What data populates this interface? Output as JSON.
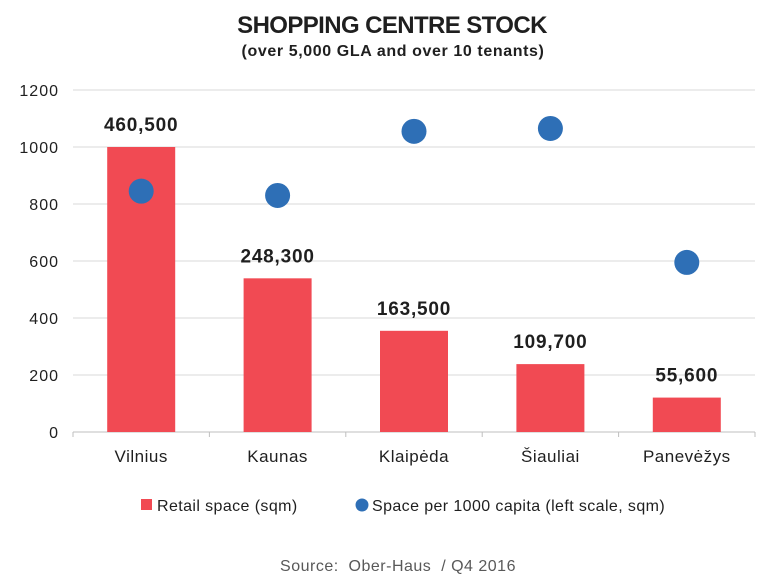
{
  "chart_data": {
    "type": "bar",
    "title": "SHOPPING CENTRE STOCK",
    "subtitle": "(over 5,000 GLA and over 10 tenants)",
    "categories": [
      "Vilnius",
      "Kaunas",
      "Klaipėda",
      "Šiauliai",
      "Panevėžys"
    ],
    "series": [
      {
        "name": "Retail space (sqm)",
        "type": "bar",
        "color": "#f14a53",
        "values": [
          460500,
          248300,
          163500,
          109700,
          55600
        ],
        "data_labels": [
          "460,500",
          "248,300",
          "163,500",
          "109,700",
          "55,600"
        ]
      },
      {
        "name": "Space per 1000 capita (left scale, sqm)",
        "type": "scatter",
        "color": "#2e6fb6",
        "values": [
          845,
          830,
          1055,
          1065,
          595
        ]
      }
    ],
    "ylim": [
      0,
      1200
    ],
    "yticks": [
      0,
      200,
      400,
      600,
      800,
      1000,
      1200
    ],
    "grid": true,
    "legend_position": "bottom",
    "source": "Source:  Ober-Haus  / Q4 2016"
  }
}
